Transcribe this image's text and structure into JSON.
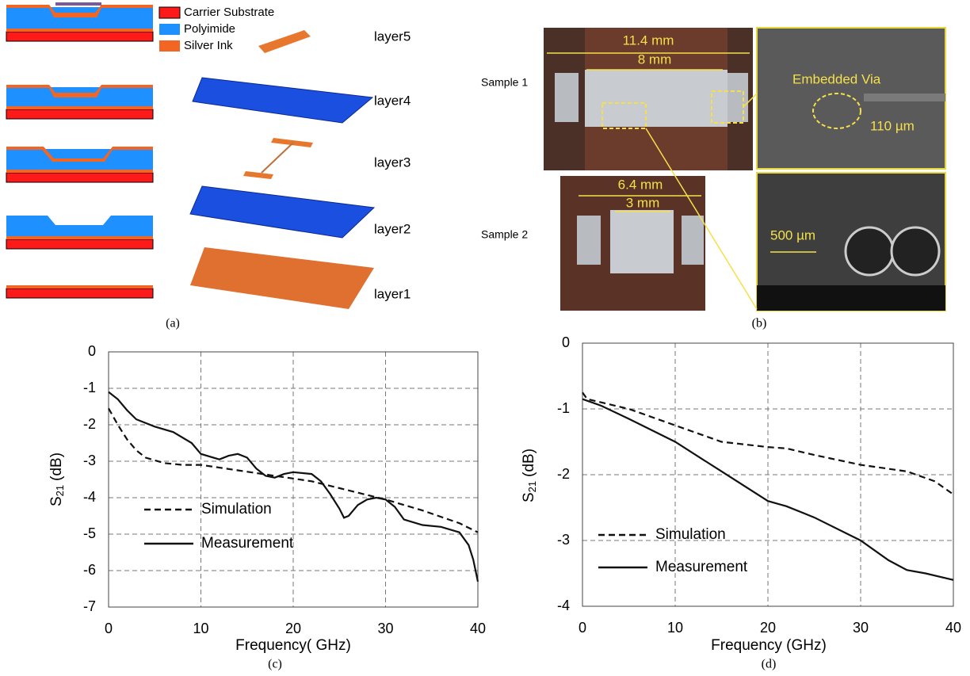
{
  "panel_a": {
    "legend": [
      "Carrier Substrate",
      "Polyimide",
      "Silver Ink"
    ],
    "layers": [
      "layer5",
      "layer4",
      "layer3",
      "layer2",
      "layer1"
    ],
    "caption": "(a)"
  },
  "panel_b": {
    "samples": [
      "Sample 1",
      "Sample 2"
    ],
    "dimensions": [
      "11.4 mm",
      "8 mm",
      "6.4 mm",
      "3 mm"
    ],
    "zoom_labels": [
      "Embedded Via",
      "110 µm",
      "500 µm"
    ],
    "caption": "(b)"
  },
  "chart_data": [
    {
      "type": "line",
      "caption": "(c)",
      "xlabel": "Frequency( GHz)",
      "ylabel": "S",
      "ylabel_sub": "21",
      "ylabel_unit": "(dB)",
      "xlim": [
        0,
        40
      ],
      "ylim": [
        -7,
        0
      ],
      "xticks": [
        0,
        10,
        20,
        30,
        40
      ],
      "yticks": [
        0,
        -1,
        -2,
        -3,
        -4,
        -5,
        -6,
        -7
      ],
      "grid": true,
      "legend": "lower left",
      "series": [
        {
          "name": "Simulation",
          "color": "#111111",
          "line_style": "dashed",
          "x": [
            0,
            1,
            2,
            3,
            4,
            6,
            8,
            10,
            14,
            18,
            22,
            26,
            30,
            34,
            38,
            40
          ],
          "values": [
            -1.55,
            -2.0,
            -2.4,
            -2.7,
            -2.9,
            -3.05,
            -3.1,
            -3.1,
            -3.25,
            -3.4,
            -3.55,
            -3.8,
            -4.05,
            -4.35,
            -4.7,
            -4.95
          ]
        },
        {
          "name": "Measurement",
          "color": "#111111",
          "line_style": "solid",
          "x": [
            0,
            1,
            2,
            3,
            5,
            7,
            9,
            10,
            12,
            13,
            14,
            15,
            16,
            17,
            18,
            19,
            20,
            22,
            23,
            24,
            25,
            25.5,
            26,
            27,
            28,
            29,
            30,
            31,
            32,
            34,
            36,
            38,
            39,
            39.5,
            40
          ],
          "values": [
            -1.1,
            -1.3,
            -1.6,
            -1.85,
            -2.05,
            -2.2,
            -2.5,
            -2.8,
            -2.95,
            -2.85,
            -2.8,
            -2.9,
            -3.2,
            -3.4,
            -3.45,
            -3.35,
            -3.3,
            -3.35,
            -3.55,
            -3.9,
            -4.3,
            -4.55,
            -4.5,
            -4.2,
            -4.05,
            -4.0,
            -4.05,
            -4.25,
            -4.6,
            -4.75,
            -4.8,
            -4.95,
            -5.3,
            -5.7,
            -6.3
          ]
        }
      ]
    },
    {
      "type": "line",
      "caption": "(d)",
      "xlabel": "Frequency (GHz)",
      "ylabel": "S",
      "ylabel_sub": "21",
      "ylabel_unit": "(dB)",
      "xlim": [
        0,
        40
      ],
      "ylim": [
        -4,
        0
      ],
      "xticks": [
        0,
        10,
        20,
        30,
        40
      ],
      "yticks": [
        0,
        -1,
        -2,
        -3,
        -4
      ],
      "grid": true,
      "legend": "lower left",
      "series": [
        {
          "name": "Simulation",
          "color": "#111111",
          "line_style": "dashed",
          "x": [
            0,
            0.5,
            2,
            5,
            10,
            15,
            20,
            22,
            25,
            30,
            35,
            38,
            40
          ],
          "values": [
            -0.75,
            -0.85,
            -0.9,
            -1.0,
            -1.25,
            -1.5,
            -1.58,
            -1.6,
            -1.7,
            -1.85,
            -1.95,
            -2.1,
            -2.3
          ]
        },
        {
          "name": "Measurement",
          "color": "#111111",
          "line_style": "solid",
          "x": [
            0,
            2,
            5,
            10,
            15,
            20,
            22,
            25,
            30,
            33,
            35,
            37,
            40
          ],
          "values": [
            -0.85,
            -0.95,
            -1.15,
            -1.5,
            -1.95,
            -2.4,
            -2.48,
            -2.65,
            -3.0,
            -3.3,
            -3.45,
            -3.5,
            -3.6
          ]
        }
      ]
    }
  ]
}
